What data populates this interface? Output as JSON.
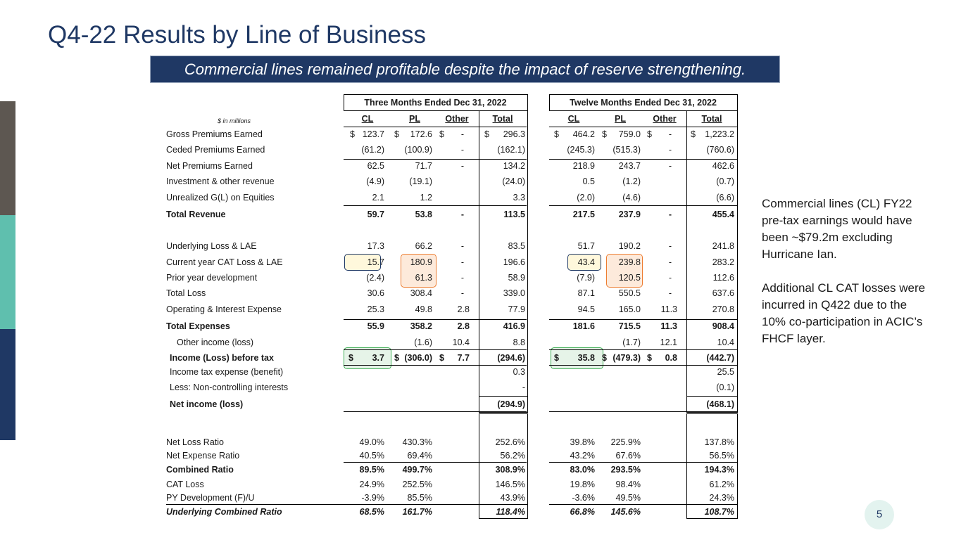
{
  "title": "Q4-22 Results by Line of Business",
  "banner": "Commercial lines remained profitable despite the impact of reserve strengthening.",
  "table": {
    "units_label": "$ in millions",
    "group_headers": [
      "Three Months Ended Dec 31, 2022",
      "Twelve Months Ended Dec 31, 2022"
    ],
    "col_headers": [
      "CL",
      "PL",
      "Other",
      "Total",
      "CL",
      "PL",
      "Other",
      "Total"
    ],
    "rows": [
      {
        "label": "Gross Premiums Earned",
        "v": [
          "123.7",
          "172.6",
          "-",
          "296.3",
          "464.2",
          "759.0",
          "-",
          "1,223.2"
        ],
        "dollar": "$"
      },
      {
        "label": "Ceded Premiums Earned",
        "v": [
          "(61.2)",
          "(100.9)",
          "-",
          "(162.1)",
          "(245.3)",
          "(515.3)",
          "-",
          "(760.6)"
        ]
      },
      {
        "label": "Net Premiums Earned",
        "v": [
          "62.5",
          "71.7",
          "-",
          "134.2",
          "218.9",
          "243.7",
          "-",
          "462.6"
        ]
      },
      {
        "label": "Investment & other revenue",
        "v": [
          "(4.9)",
          "(19.1)",
          "",
          "(24.0)",
          "0.5",
          "(1.2)",
          "",
          "(0.7)"
        ]
      },
      {
        "label": "Unrealized G(L) on Equities",
        "v": [
          "2.1",
          "1.2",
          "",
          "3.3",
          "(2.0)",
          "(4.6)",
          "",
          "(6.6)"
        ]
      },
      {
        "label": "Total Revenue",
        "v": [
          "59.7",
          "53.8",
          "-",
          "113.5",
          "217.5",
          "237.9",
          "-",
          "455.4"
        ]
      },
      {
        "label": "Underlying Loss & LAE",
        "v": [
          "17.3",
          "66.2",
          "-",
          "83.5",
          "51.7",
          "190.2",
          "-",
          "241.8"
        ]
      },
      {
        "label": "Current year CAT Loss & LAE",
        "v": [
          "15.7",
          "180.9",
          "-",
          "196.6",
          "43.4",
          "239.8",
          "-",
          "283.2"
        ]
      },
      {
        "label": "Prior year development",
        "v": [
          "(2.4)",
          "61.3",
          "-",
          "58.9",
          "(7.9)",
          "120.5",
          "-",
          "112.6"
        ]
      },
      {
        "label": "Total Loss",
        "v": [
          "30.6",
          "308.4",
          "-",
          "339.0",
          "87.1",
          "550.5",
          "-",
          "637.6"
        ]
      },
      {
        "label": "Operating & Interest Expense",
        "v": [
          "25.3",
          "49.8",
          "2.8",
          "77.9",
          "94.5",
          "165.0",
          "11.3",
          "270.8"
        ]
      },
      {
        "label": "Total Expenses",
        "v": [
          "55.9",
          "358.2",
          "2.8",
          "416.9",
          "181.6",
          "715.5",
          "11.3",
          "908.4"
        ]
      },
      {
        "label": "Other income (loss)",
        "v": [
          "",
          "(1.6)",
          "10.4",
          "8.8",
          "",
          "(1.7)",
          "12.1",
          "10.4"
        ]
      },
      {
        "label": "Income (Loss) before tax",
        "v": [
          "3.7",
          "(306.0)",
          "7.7",
          "(294.6)",
          "35.8",
          "(479.3)",
          "0.8",
          "(442.7)"
        ],
        "dollar": "$"
      },
      {
        "label": "Income tax expense (benefit)",
        "v": [
          "",
          "",
          "",
          "0.3",
          "",
          "",
          "",
          "25.5"
        ]
      },
      {
        "label": "Less:  Non-controlling interests",
        "v": [
          "",
          "",
          "",
          "-",
          "",
          "",
          "",
          "(0.1)"
        ]
      },
      {
        "label": "Net income (loss)",
        "v": [
          "",
          "",
          "",
          "(294.9)",
          "",
          "",
          "",
          "(468.1)"
        ]
      }
    ],
    "ratios": [
      {
        "label": "Net Loss Ratio",
        "v": [
          "49.0%",
          "430.3%",
          "",
          "252.6%",
          "39.8%",
          "225.9%",
          "",
          "137.8%"
        ]
      },
      {
        "label": "Net Expense Ratio",
        "v": [
          "40.5%",
          "69.4%",
          "",
          "56.2%",
          "43.2%",
          "67.6%",
          "",
          "56.5%"
        ]
      },
      {
        "label": "Combined Ratio",
        "v": [
          "89.5%",
          "499.7%",
          "",
          "308.9%",
          "83.0%",
          "293.5%",
          "",
          "194.3%"
        ]
      },
      {
        "label": "CAT Loss",
        "v": [
          "24.9%",
          "252.5%",
          "",
          "146.5%",
          "19.8%",
          "98.4%",
          "",
          "61.2%"
        ]
      },
      {
        "label": "PY Development (F)/U",
        "v": [
          "-3.9%",
          "85.5%",
          "",
          "43.9%",
          "-3.6%",
          "49.5%",
          "",
          "24.3%"
        ]
      },
      {
        "label": "Underlying Combined Ratio",
        "v": [
          "68.5%",
          "161.7%",
          "",
          "118.4%",
          "66.8%",
          "145.6%",
          "",
          "108.7%"
        ]
      }
    ]
  },
  "notes": {
    "p1": "Commercial lines (CL) FY22 pre-tax earnings would have been ~$79.2m excluding Hurricane Ian.",
    "p2": "Additional CL CAT losses were incurred in Q422 due to the 10% co-participation in ACIC’s FHCF layer."
  },
  "page_number": "5",
  "colors": {
    "navy": "#1f3864",
    "brown": "#5d5751",
    "teal": "#5fbfae",
    "orange": "#ed7d31",
    "green": "#3fae55"
  }
}
